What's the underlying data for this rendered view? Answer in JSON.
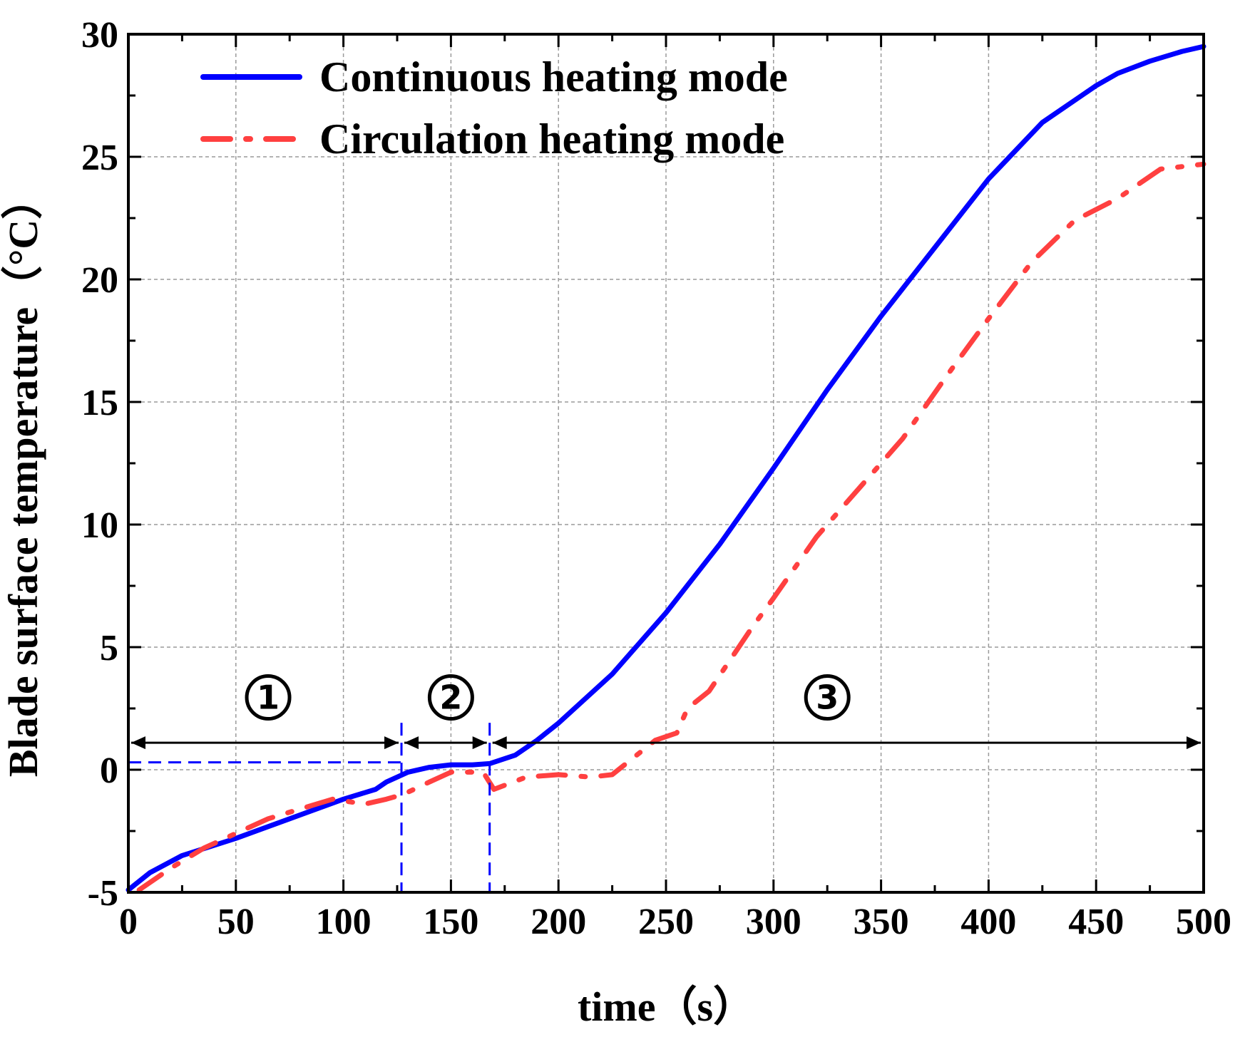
{
  "chart_data": {
    "type": "line",
    "title": "",
    "xlabel": "time（s）",
    "ylabel": "Blade surface temperature（°C）",
    "xlim": [
      0,
      500
    ],
    "ylim": [
      -5,
      30
    ],
    "xticks": [
      0,
      50,
      100,
      150,
      200,
      250,
      300,
      350,
      400,
      450,
      500
    ],
    "yticks": [
      -5,
      0,
      5,
      10,
      15,
      20,
      25,
      30
    ],
    "xtick_labels": [
      "0",
      "50",
      "100",
      "150",
      "200",
      "250",
      "300",
      "350",
      "400",
      "450",
      "500"
    ],
    "ytick_labels": [
      "-5",
      "0",
      "5",
      "10",
      "15",
      "20",
      "25",
      "30"
    ],
    "grid": true,
    "legend_position": "top-left",
    "series": [
      {
        "name": "Continuous heating mode",
        "color": "#0000ff",
        "style": "solid",
        "x": [
          0,
          10,
          25,
          50,
          75,
          100,
          115,
          120,
          130,
          140,
          150,
          160,
          168,
          180,
          190,
          200,
          225,
          250,
          275,
          300,
          325,
          350,
          375,
          400,
          425,
          450,
          460,
          475,
          490,
          500
        ],
        "y": [
          -4.9,
          -4.2,
          -3.5,
          -2.8,
          -2.0,
          -1.2,
          -0.8,
          -0.5,
          -0.1,
          0.1,
          0.2,
          0.2,
          0.25,
          0.6,
          1.2,
          1.9,
          3.9,
          6.4,
          9.2,
          12.3,
          15.5,
          18.5,
          21.3,
          24.1,
          26.4,
          27.9,
          28.4,
          28.9,
          29.3,
          29.5
        ]
      },
      {
        "name": "Circulation heating mode",
        "color": "#ff4040",
        "style": "dashdot",
        "x": [
          5,
          20,
          35,
          50,
          65,
          80,
          95,
          110,
          120,
          128,
          140,
          150,
          165,
          170,
          185,
          200,
          215,
          225,
          235,
          245,
          255,
          260,
          270,
          280,
          290,
          300,
          320,
          340,
          360,
          380,
          400,
          420,
          440,
          460,
          480,
          500
        ],
        "y": [
          -4.9,
          -4.0,
          -3.2,
          -2.6,
          -2.0,
          -1.6,
          -1.2,
          -1.4,
          -1.2,
          -1.0,
          -0.5,
          -0.1,
          -0.1,
          -0.8,
          -0.3,
          -0.2,
          -0.3,
          -0.2,
          0.5,
          1.2,
          1.5,
          2.5,
          3.2,
          4.5,
          5.8,
          7.0,
          9.5,
          11.5,
          13.5,
          16.0,
          18.4,
          20.7,
          22.4,
          23.3,
          24.5,
          24.7
        ]
      }
    ],
    "annotations": {
      "phase_labels": [
        "①",
        "②",
        "③"
      ],
      "phase_boundaries_x": [
        0,
        127,
        168,
        500
      ],
      "phase_arrow_y": 1.1,
      "reference_level_y": 0.3
    }
  }
}
